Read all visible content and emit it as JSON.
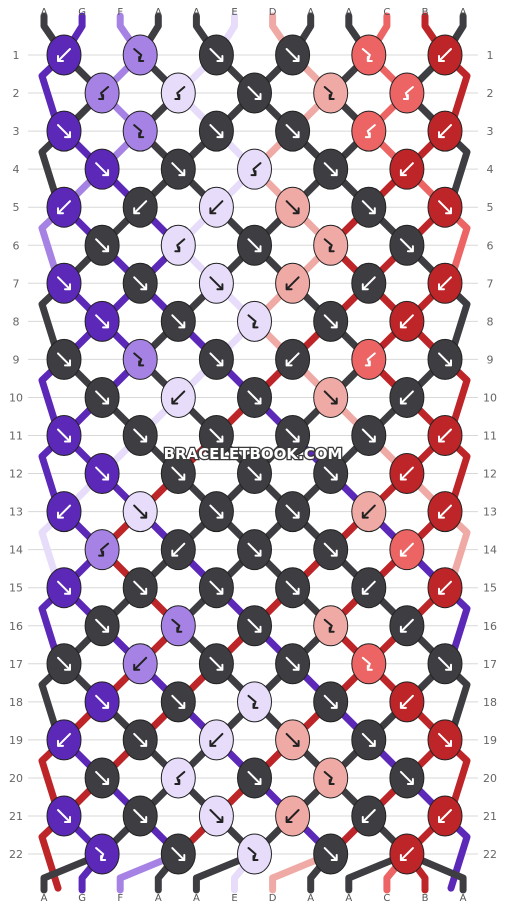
{
  "watermark": "BRACELETBOOK.COM",
  "colors": {
    "A": "#3e3d42",
    "G": "#5c28b8",
    "F": "#a582e3",
    "E": "#e7ddfa",
    "D": "#f0aaa6",
    "C": "#ec6464",
    "B": "#bd2528"
  },
  "strands_top": [
    "A",
    "G",
    "F",
    "A",
    "A",
    "E",
    "D",
    "A",
    "A",
    "C",
    "B",
    "A"
  ],
  "strands_bottom": [
    "A",
    "G",
    "F",
    "A",
    "A",
    "E",
    "D",
    "A",
    "A",
    "C",
    "B",
    "A"
  ],
  "row_labels": [
    "1",
    "2",
    "3",
    "4",
    "5",
    "6",
    "7",
    "8",
    "9",
    "10",
    "11",
    "12",
    "13",
    "14",
    "15",
    "16",
    "17",
    "18",
    "19",
    "20",
    "21",
    "22"
  ],
  "knots": [
    [
      [
        "G",
        "dl"
      ],
      [
        "F",
        "fr"
      ],
      [
        "A",
        "dr"
      ],
      [
        "A",
        "dr"
      ],
      [
        "C",
        "fr"
      ],
      [
        "B",
        "dl"
      ]
    ],
    [
      [
        "F",
        "fl"
      ],
      [
        "E",
        "fl"
      ],
      [
        "A",
        "dr"
      ],
      [
        "D",
        "fr"
      ],
      [
        "C",
        "fl"
      ]
    ],
    [
      [
        "G",
        "dr"
      ],
      [
        "F",
        "fr"
      ],
      [
        "A",
        "dr"
      ],
      [
        "A",
        "dr"
      ],
      [
        "C",
        "fl"
      ],
      [
        "B",
        "dl"
      ]
    ],
    [
      [
        "G",
        "dr"
      ],
      [
        "A",
        "dr"
      ],
      [
        "E",
        "fl"
      ],
      [
        "A",
        "dr"
      ],
      [
        "B",
        "dl"
      ]
    ],
    [
      [
        "G",
        "dl"
      ],
      [
        "A",
        "dl"
      ],
      [
        "E",
        "dl"
      ],
      [
        "D",
        "dr"
      ],
      [
        "A",
        "dr"
      ],
      [
        "B",
        "dr"
      ]
    ],
    [
      [
        "A",
        "dr"
      ],
      [
        "E",
        "fl"
      ],
      [
        "A",
        "dr"
      ],
      [
        "D",
        "fr"
      ],
      [
        "A",
        "dr"
      ]
    ],
    [
      [
        "G",
        "dr"
      ],
      [
        "A",
        "dr"
      ],
      [
        "E",
        "dr"
      ],
      [
        "D",
        "dl"
      ],
      [
        "A",
        "dl"
      ],
      [
        "B",
        "dl"
      ]
    ],
    [
      [
        "G",
        "dr"
      ],
      [
        "A",
        "dr"
      ],
      [
        "E",
        "fr"
      ],
      [
        "A",
        "dr"
      ],
      [
        "B",
        "dl"
      ]
    ],
    [
      [
        "A",
        "dr"
      ],
      [
        "F",
        "fr"
      ],
      [
        "A",
        "dr"
      ],
      [
        "A",
        "dl"
      ],
      [
        "C",
        "fl"
      ],
      [
        "A",
        "dr"
      ]
    ],
    [
      [
        "A",
        "dr"
      ],
      [
        "E",
        "dl"
      ],
      [
        "A",
        "dr"
      ],
      [
        "D",
        "dr"
      ],
      [
        "A",
        "dl"
      ]
    ],
    [
      [
        "G",
        "dr"
      ],
      [
        "A",
        "dr"
      ],
      [
        "A",
        "dr"
      ],
      [
        "A",
        "dr"
      ],
      [
        "A",
        "dr"
      ],
      [
        "B",
        "dl"
      ]
    ],
    [
      [
        "G",
        "dr"
      ],
      [
        "A",
        "dr"
      ],
      [
        "A",
        "dr"
      ],
      [
        "A",
        "dr"
      ],
      [
        "B",
        "dl"
      ]
    ],
    [
      [
        "G",
        "dl"
      ],
      [
        "E",
        "dr"
      ],
      [
        "A",
        "dr"
      ],
      [
        "A",
        "dr"
      ],
      [
        "D",
        "dl"
      ],
      [
        "B",
        "dl"
      ]
    ],
    [
      [
        "F",
        "fl"
      ],
      [
        "A",
        "dl"
      ],
      [
        "A",
        "dr"
      ],
      [
        "A",
        "dr"
      ],
      [
        "C",
        "dl"
      ]
    ],
    [
      [
        "G",
        "dr"
      ],
      [
        "A",
        "dr"
      ],
      [
        "A",
        "dr"
      ],
      [
        "A",
        "dr"
      ],
      [
        "A",
        "dl"
      ],
      [
        "B",
        "dl"
      ]
    ],
    [
      [
        "A",
        "dr"
      ],
      [
        "F",
        "fr"
      ],
      [
        "A",
        "dr"
      ],
      [
        "D",
        "fr"
      ],
      [
        "A",
        "dl"
      ]
    ],
    [
      [
        "A",
        "dr"
      ],
      [
        "F",
        "dl"
      ],
      [
        "A",
        "dr"
      ],
      [
        "A",
        "dr"
      ],
      [
        "C",
        "fr"
      ],
      [
        "A",
        "dr"
      ]
    ],
    [
      [
        "G",
        "dr"
      ],
      [
        "A",
        "dr"
      ],
      [
        "E",
        "fr"
      ],
      [
        "A",
        "dr"
      ],
      [
        "B",
        "dl"
      ]
    ],
    [
      [
        "G",
        "dl"
      ],
      [
        "A",
        "dr"
      ],
      [
        "E",
        "dl"
      ],
      [
        "D",
        "dr"
      ],
      [
        "A",
        "dr"
      ],
      [
        "B",
        "dr"
      ]
    ],
    [
      [
        "A",
        "dr"
      ],
      [
        "E",
        "fl"
      ],
      [
        "A",
        "dr"
      ],
      [
        "D",
        "fr"
      ],
      [
        "A",
        "dr"
      ]
    ],
    [
      [
        "G",
        "dr"
      ],
      [
        "A",
        "dr"
      ],
      [
        "E",
        "dr"
      ],
      [
        "D",
        "dl"
      ],
      [
        "A",
        "dl"
      ],
      [
        "B",
        "dl"
      ]
    ],
    [
      [
        "G",
        "fr"
      ],
      [
        "A",
        "dr"
      ],
      [
        "E",
        "fr"
      ],
      [
        "A",
        "dr"
      ],
      [
        "B",
        "dl"
      ]
    ]
  ]
}
